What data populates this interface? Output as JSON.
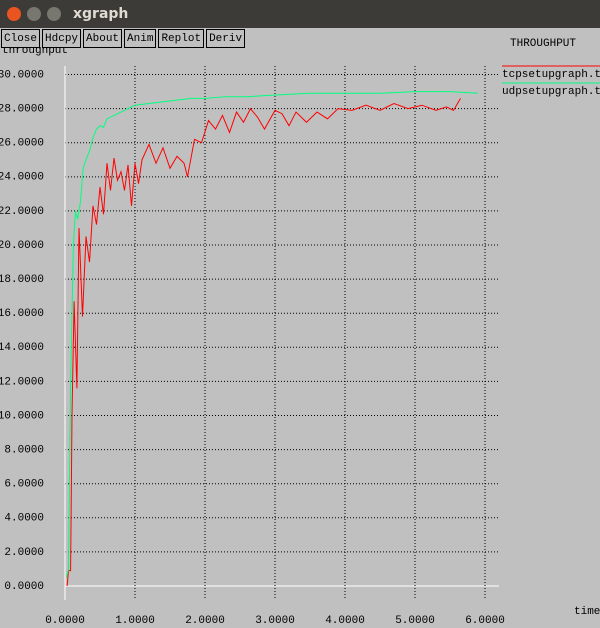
{
  "window": {
    "title": "xgraph",
    "buttons": [
      "Close",
      "Hdcpy",
      "About",
      "Anim",
      "Replot",
      "Deriv"
    ]
  },
  "chart_data": {
    "type": "line",
    "title": "THROUGHPUT",
    "y_label": "throughput",
    "x_label": "time",
    "xlim": [
      0,
      6.2
    ],
    "ylim": [
      0,
      30.5
    ],
    "grid": true,
    "xticks": [
      {
        "value": 0,
        "label": "0.0000"
      },
      {
        "value": 1,
        "label": "1.0000"
      },
      {
        "value": 2,
        "label": "2.0000"
      },
      {
        "value": 3,
        "label": "3.0000"
      },
      {
        "value": 4,
        "label": "4.0000"
      },
      {
        "value": 5,
        "label": "5.0000"
      },
      {
        "value": 6,
        "label": "6.0000"
      }
    ],
    "yticks": [
      {
        "value": 0,
        "label": "0.0000"
      },
      {
        "value": 2,
        "label": "2.0000"
      },
      {
        "value": 4,
        "label": "4.0000"
      },
      {
        "value": 6,
        "label": "6.0000"
      },
      {
        "value": 8,
        "label": "8.0000"
      },
      {
        "value": 10,
        "label": "10.0000"
      },
      {
        "value": 12,
        "label": "12.0000"
      },
      {
        "value": 14,
        "label": "14.0000"
      },
      {
        "value": 16,
        "label": "16.0000"
      },
      {
        "value": 18,
        "label": "18.0000"
      },
      {
        "value": 20,
        "label": "20.0000"
      },
      {
        "value": 22,
        "label": "22.0000"
      },
      {
        "value": 24,
        "label": "24.0000"
      },
      {
        "value": 26,
        "label": "26.0000"
      },
      {
        "value": 28,
        "label": "28.0000"
      },
      {
        "value": 30,
        "label": "30.0000"
      }
    ],
    "series": [
      {
        "name": "tcpsetupgraph.tr",
        "color": "#ff0000",
        "x": [
          0.03,
          0.05,
          0.08,
          0.1,
          0.13,
          0.17,
          0.2,
          0.25,
          0.3,
          0.35,
          0.4,
          0.45,
          0.5,
          0.55,
          0.6,
          0.65,
          0.7,
          0.75,
          0.8,
          0.85,
          0.9,
          0.95,
          1.0,
          1.05,
          1.1,
          1.2,
          1.3,
          1.4,
          1.5,
          1.6,
          1.7,
          1.75,
          1.85,
          1.95,
          2.05,
          2.15,
          2.25,
          2.35,
          2.45,
          2.55,
          2.65,
          2.75,
          2.85,
          3.0,
          3.1,
          3.2,
          3.3,
          3.45,
          3.6,
          3.75,
          3.9,
          4.1,
          4.3,
          4.5,
          4.7,
          4.9,
          5.1,
          5.3,
          5.45,
          5.55,
          5.65
        ],
        "values": [
          0,
          0.9,
          0.9,
          10,
          16.7,
          11.6,
          21,
          15.8,
          20.5,
          19,
          22.3,
          21.2,
          23.4,
          21.8,
          24.8,
          23.2,
          25.1,
          23.8,
          24.3,
          23.2,
          24.7,
          22.3,
          24.8,
          23.6,
          25,
          25.9,
          24.8,
          25.7,
          24.5,
          25.2,
          24.8,
          24,
          26.2,
          26,
          27.3,
          26.8,
          27.6,
          26.6,
          27.8,
          27.2,
          28,
          27.5,
          26.8,
          27.9,
          27.7,
          27,
          27.8,
          27.2,
          27.8,
          27.4,
          28,
          27.9,
          28.2,
          27.9,
          28.3,
          28,
          28.2,
          27.9,
          28.1,
          27.9,
          28.6
        ]
      },
      {
        "name": "udpsetupgraph.tr",
        "color": "#00ff7f",
        "x": [
          0.02,
          0.05,
          0.08,
          0.12,
          0.15,
          0.18,
          0.22,
          0.26,
          0.3,
          0.35,
          0.4,
          0.45,
          0.5,
          0.55,
          0.6,
          0.7,
          0.8,
          0.9,
          1.0,
          1.2,
          1.4,
          1.6,
          1.8,
          2.0,
          2.3,
          2.6,
          3.0,
          3.5,
          4.0,
          4.5,
          5.0,
          5.5,
          5.9
        ],
        "values": [
          0.5,
          1,
          12,
          20,
          22,
          21.5,
          22.5,
          24.5,
          25,
          25.5,
          26.3,
          26.8,
          27,
          26.9,
          27.4,
          27.6,
          27.8,
          28,
          28.2,
          28.3,
          28.4,
          28.5,
          28.6,
          28.6,
          28.7,
          28.7,
          28.8,
          28.9,
          28.9,
          28.9,
          29,
          29,
          28.9
        ]
      }
    ]
  }
}
